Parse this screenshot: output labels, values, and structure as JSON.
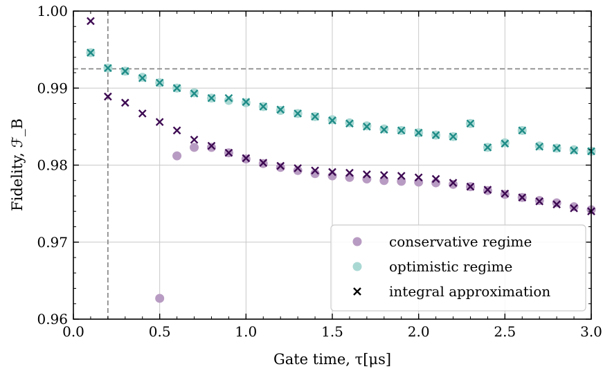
{
  "chart_data": {
    "type": "scatter",
    "xlabel": "Gate time, τ[μs]",
    "ylabel": "Fidelity, ℱ_B",
    "xlim": [
      0.0,
      3.0
    ],
    "ylim": [
      0.96,
      1.0
    ],
    "xticks": [
      "0.0",
      "0.5",
      "1.0",
      "1.5",
      "2.0",
      "2.5",
      "3.0"
    ],
    "yticks": [
      "0.96",
      "0.97",
      "0.98",
      "0.99",
      "1.00"
    ],
    "grid": true,
    "legend_position": "bottom-right",
    "reference_lines": {
      "vertical_x": 0.2,
      "horizontal_y": 0.9925
    },
    "colors": {
      "conservative": "#b89bc2",
      "optimistic": "#a9d8d3",
      "integral_conservative": "#3d0a52",
      "integral_optimistic": "#1f8c87",
      "reference": "#808080",
      "grid": "#c8c8c8"
    },
    "series": [
      {
        "name": "conservative regime",
        "marker": "circle",
        "x": [
          0.5,
          0.6,
          0.7,
          0.8,
          0.9,
          1.0,
          1.1,
          1.2,
          1.3,
          1.4,
          1.5,
          1.6,
          1.7,
          1.8,
          1.9,
          2.0,
          2.1,
          2.2,
          2.3,
          2.4,
          2.5,
          2.6,
          2.7,
          2.8,
          2.9,
          3.0
        ],
        "y": [
          0.9627,
          0.9812,
          0.9823,
          0.9823,
          0.9816,
          0.9808,
          0.9802,
          0.9797,
          0.9793,
          0.9789,
          0.9786,
          0.9784,
          0.9782,
          0.978,
          0.9779,
          0.9778,
          0.9777,
          0.9775,
          0.9772,
          0.9767,
          0.9762,
          0.9758,
          0.9754,
          0.9751,
          0.9746,
          0.9742
        ]
      },
      {
        "name": "optimistic regime",
        "marker": "circle",
        "x": [
          0.1,
          0.2,
          0.3,
          0.4,
          0.5,
          0.6,
          0.7,
          0.8,
          0.9,
          1.0,
          1.1,
          1.2,
          1.3,
          1.4,
          1.5,
          1.6,
          1.7,
          1.8,
          1.9,
          2.0,
          2.1,
          2.2,
          2.3,
          2.4,
          2.5,
          2.6,
          2.7,
          2.8,
          2.9,
          3.0
        ],
        "y": [
          0.9946,
          0.9926,
          0.9922,
          0.9914,
          0.9907,
          0.99,
          0.9894,
          0.9887,
          0.9884,
          0.9881,
          0.9876,
          0.9871,
          0.9867,
          0.9863,
          0.9859,
          0.9855,
          0.9851,
          0.9847,
          0.9845,
          0.9842,
          0.9839,
          0.9837,
          0.9854,
          0.9823,
          0.9829,
          0.9845,
          0.9825,
          0.9822,
          0.982,
          0.9818
        ]
      },
      {
        "name": "integral approximation",
        "marker": "x",
        "legend_color": "#000000",
        "x": [
          0.1,
          0.2,
          0.3,
          0.4,
          0.5,
          0.6,
          0.7,
          0.8,
          0.9,
          1.0,
          1.1,
          1.2,
          1.3,
          1.4,
          1.5,
          1.6,
          1.7,
          1.8,
          1.9,
          2.0,
          2.1,
          2.2,
          2.3,
          2.4,
          2.5,
          2.6,
          2.7,
          2.8,
          2.9,
          3.0
        ],
        "y_conservative": [
          0.9987,
          0.9889,
          0.9881,
          0.9867,
          0.9856,
          0.9845,
          0.9833,
          0.9825,
          0.9816,
          0.9809,
          0.9803,
          0.9799,
          0.9796,
          0.9793,
          0.9791,
          0.979,
          0.9788,
          0.9787,
          0.9786,
          0.9784,
          0.9782,
          0.9777,
          0.9772,
          0.9768,
          0.9763,
          0.9758,
          0.9753,
          0.9749,
          0.9744,
          0.974
        ],
        "y_optimistic": [
          0.9946,
          0.9926,
          0.9922,
          0.9913,
          0.9907,
          0.99,
          0.9893,
          0.9887,
          0.9887,
          0.9882,
          0.9876,
          0.9872,
          0.9867,
          0.9863,
          0.9858,
          0.9854,
          0.985,
          0.9846,
          0.9845,
          0.9842,
          0.9839,
          0.9837,
          0.9854,
          0.9823,
          0.9828,
          0.9845,
          0.9824,
          0.9822,
          0.9819,
          0.9818
        ]
      }
    ]
  }
}
